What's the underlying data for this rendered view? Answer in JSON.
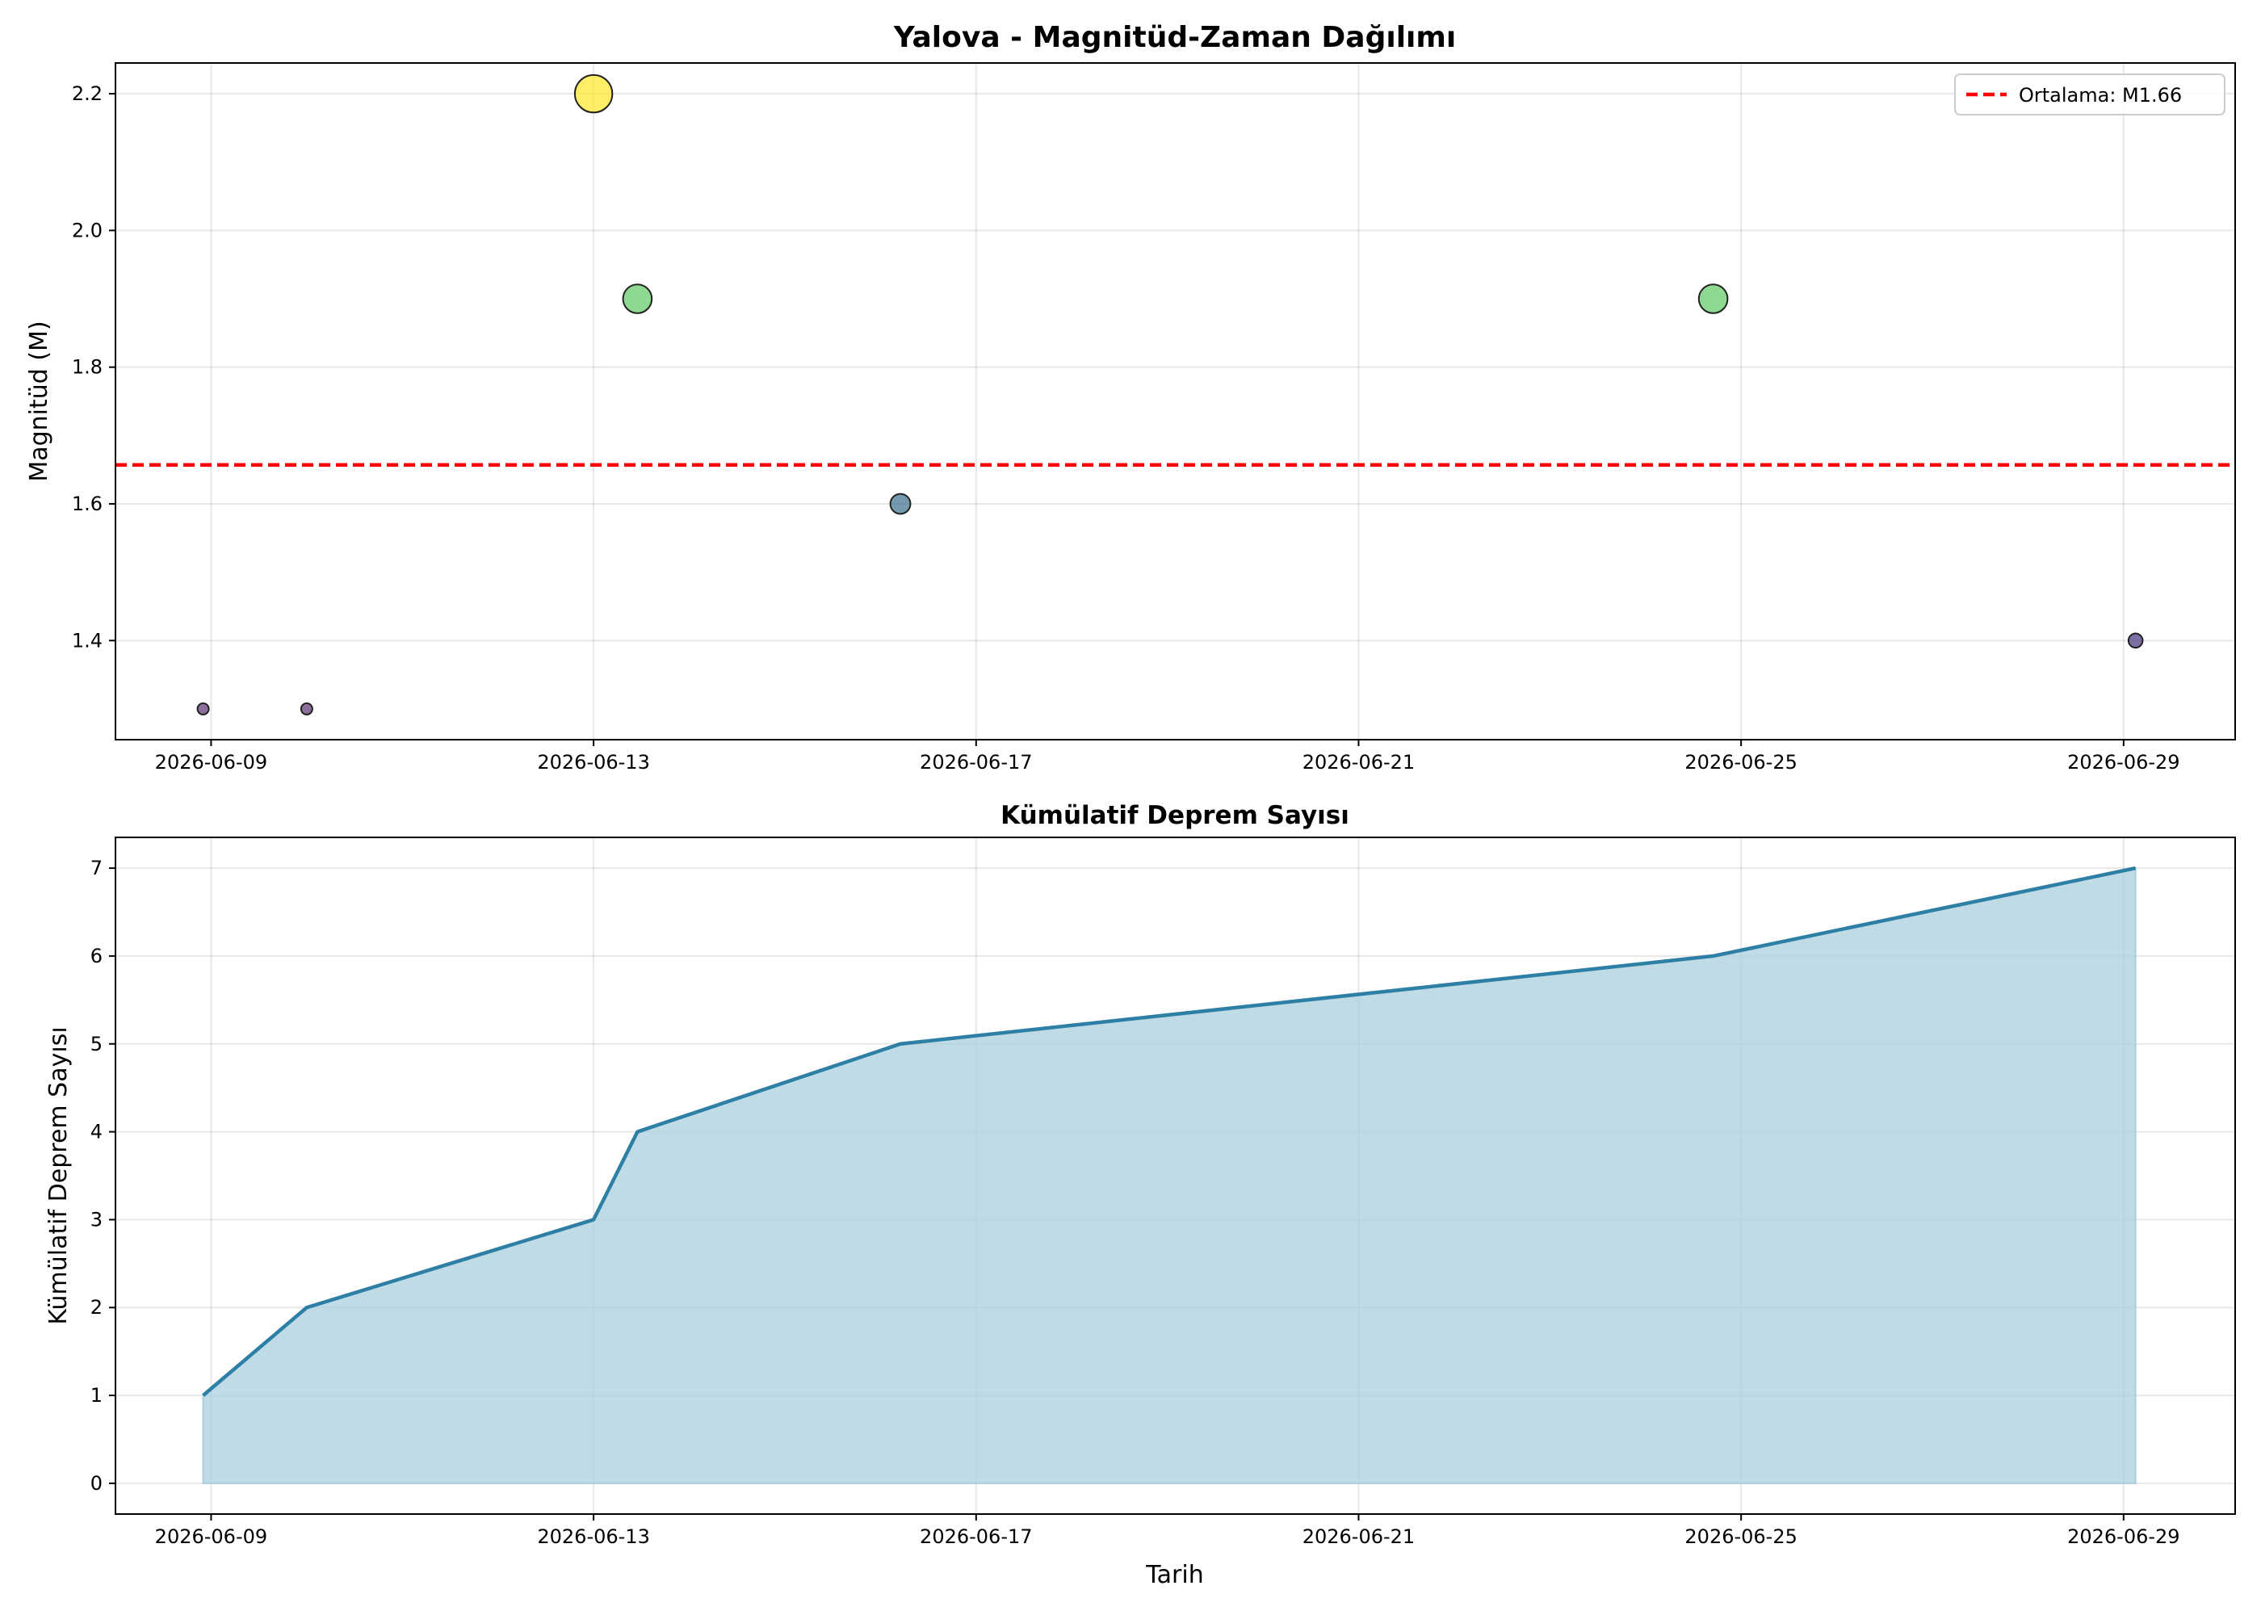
{
  "chart_data": [
    {
      "type": "scatter",
      "title": "Yalova - Magnitüd-Zaman Dağılımı",
      "xlabel": "",
      "ylabel": "Magnitüd (M)",
      "x_tick_labels": [
        "2026-06-09",
        "2026-06-13",
        "2026-06-17",
        "2026-06-21",
        "2026-06-25",
        "2026-06-29"
      ],
      "x_ticks": [
        "2026-06-09",
        "2026-06-13",
        "2026-06-17",
        "2026-06-21",
        "2026-06-25",
        "2026-06-29"
      ],
      "xlim": [
        "2026-06-08 00:00",
        "2026-06-30 04:00"
      ],
      "y_ticks": [
        1.4,
        1.6,
        1.8,
        2.0,
        2.2
      ],
      "y_tick_labels": [
        "1.4",
        "1.6",
        "1.8",
        "2.0",
        "2.2"
      ],
      "ylim": [
        1.255,
        2.245
      ],
      "grid": true,
      "points": [
        {
          "x": "2026-06-08 22:00",
          "y": 1.3,
          "color": "#5c2f6d"
        },
        {
          "x": "2026-06-10 00:00",
          "y": 1.3,
          "color": "#5c2f6d"
        },
        {
          "x": "2026-06-13 00:00",
          "y": 2.2,
          "color": "#fde725"
        },
        {
          "x": "2026-06-13 11:00",
          "y": 1.9,
          "color": "#5ec962"
        },
        {
          "x": "2026-06-16 05:00",
          "y": 1.6,
          "color": "#3b6e8c"
        },
        {
          "x": "2026-06-24 17:00",
          "y": 1.9,
          "color": "#5ec962"
        },
        {
          "x": "2026-06-29 03:00",
          "y": 1.4,
          "color": "#46327e"
        }
      ],
      "reference_line": {
        "y": 1.657,
        "label": "Ortalama: M1.66",
        "color": "#ff0000",
        "style": "dashed"
      },
      "legend": {
        "entries": [
          "Ortalama: M1.66"
        ],
        "placement": "upper right"
      }
    },
    {
      "type": "area",
      "title": "Kümülatif Deprem Sayısı",
      "xlabel": "Tarih",
      "ylabel": "Kümülatif Deprem Sayısı",
      "x_tick_labels": [
        "2026-06-09",
        "2026-06-13",
        "2026-06-17",
        "2026-06-21",
        "2026-06-25",
        "2026-06-29"
      ],
      "x_ticks": [
        "2026-06-09",
        "2026-06-13",
        "2026-06-17",
        "2026-06-21",
        "2026-06-25",
        "2026-06-29"
      ],
      "xlim": [
        "2026-06-08 00:00",
        "2026-06-30 04:00"
      ],
      "y_ticks": [
        0,
        1,
        2,
        3,
        4,
        5,
        6,
        7
      ],
      "y_tick_labels": [
        "0",
        "1",
        "2",
        "3",
        "4",
        "5",
        "6",
        "7"
      ],
      "ylim": [
        -0.35,
        7.35
      ],
      "grid": true,
      "line_color": "#2e7fa5",
      "fill_color": "#aacfdc",
      "points": [
        {
          "x": "2026-06-08 22:00",
          "y": 1
        },
        {
          "x": "2026-06-10 00:00",
          "y": 2
        },
        {
          "x": "2026-06-13 00:00",
          "y": 3
        },
        {
          "x": "2026-06-13 11:00",
          "y": 4
        },
        {
          "x": "2026-06-16 05:00",
          "y": 5
        },
        {
          "x": "2026-06-24 17:00",
          "y": 6
        },
        {
          "x": "2026-06-29 03:00",
          "y": 7
        }
      ]
    }
  ]
}
